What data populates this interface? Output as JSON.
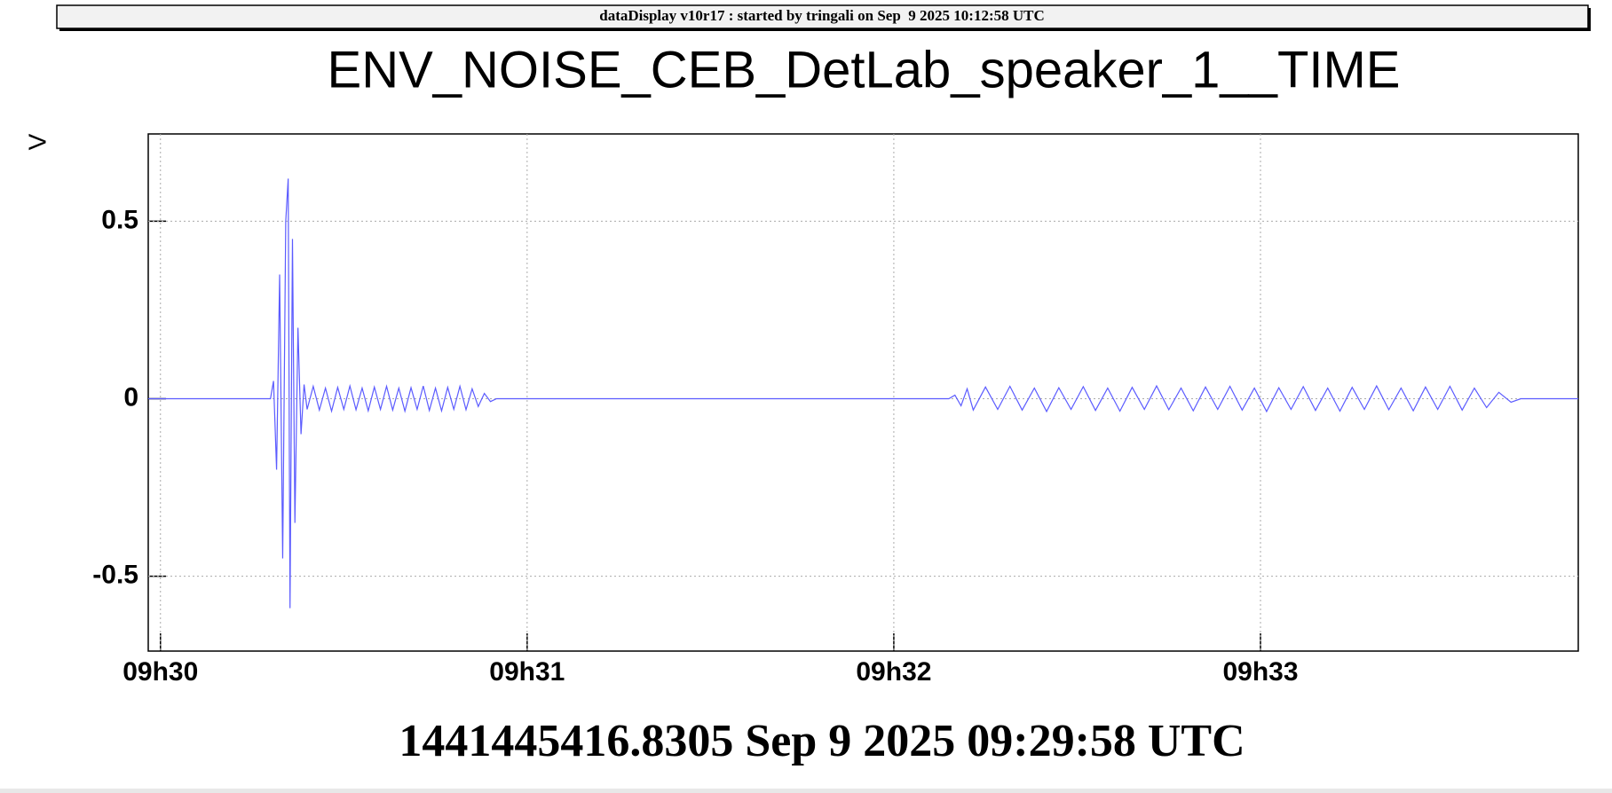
{
  "chart_data": {
    "type": "line",
    "subtitle": "dataDisplay v10r17 : started by tringali on Sep  9 2025 10:12:58 UTC",
    "title": "ENV_NOISE_CEB_DetLab_speaker_1__TIME",
    "xlabel": "1441445416.8305 Sep 9 2025 09:29:58 UTC",
    "ylabel": "V",
    "xlim": [
      0,
      234
    ],
    "xticks": [
      {
        "value": 2,
        "label": "09h30"
      },
      {
        "value": 62,
        "label": "09h31"
      },
      {
        "value": 122,
        "label": "09h32"
      },
      {
        "value": 182,
        "label": "09h33"
      }
    ],
    "ylim": [
      -0.711,
      0.746
    ],
    "yticks": [
      -0.5,
      0,
      0.5
    ],
    "grid": true,
    "series": [
      {
        "color": "#5b5bff",
        "x": [
          0,
          20,
          20.5,
          21,
          21.5,
          22,
          22.5,
          22.9,
          23.2,
          23.6,
          24,
          24.5,
          25,
          25.5,
          26,
          27,
          28,
          29,
          30,
          31,
          32,
          33,
          34,
          35,
          36,
          37,
          38,
          39,
          40,
          41,
          42,
          43,
          44,
          45,
          46,
          47,
          48,
          49,
          50,
          51,
          52,
          53,
          54,
          55,
          56,
          57,
          131,
          132,
          133,
          134,
          135,
          137,
          139,
          141,
          143,
          145,
          147,
          149,
          151,
          153,
          155,
          157,
          159,
          161,
          163,
          165,
          167,
          169,
          171,
          173,
          175,
          177,
          179,
          181,
          183,
          185,
          187,
          189,
          191,
          193,
          195,
          197,
          199,
          201,
          203,
          205,
          207,
          209,
          211,
          213,
          215,
          217,
          219,
          221,
          223,
          224.6,
          234
        ],
        "values": [
          0,
          0,
          0.05,
          -0.2,
          0.35,
          -0.45,
          0.5,
          0.62,
          -0.59,
          0.45,
          -0.35,
          0.2,
          -0.1,
          0.04,
          -0.03,
          0.035,
          -0.032,
          0.03,
          -0.035,
          0.032,
          -0.03,
          0.036,
          -0.031,
          0.03,
          -0.034,
          0.033,
          -0.03,
          0.035,
          -0.032,
          0.03,
          -0.035,
          0.031,
          -0.03,
          0.036,
          -0.033,
          0.03,
          -0.034,
          0.032,
          -0.03,
          0.035,
          -0.031,
          0.028,
          -0.022,
          0.015,
          -0.008,
          0,
          0,
          0.01,
          -0.02,
          0.028,
          -0.032,
          0.033,
          -0.03,
          0.035,
          -0.032,
          0.03,
          -0.036,
          0.031,
          -0.03,
          0.034,
          -0.033,
          0.03,
          -0.035,
          0.032,
          -0.03,
          0.036,
          -0.031,
          0.03,
          -0.034,
          0.033,
          -0.03,
          0.035,
          -0.032,
          0.03,
          -0.036,
          0.031,
          -0.03,
          0.034,
          -0.033,
          0.03,
          -0.035,
          0.032,
          -0.03,
          0.036,
          -0.031,
          0.03,
          -0.034,
          0.033,
          -0.03,
          0.035,
          -0.032,
          0.03,
          -0.025,
          0.018,
          -0.01,
          0,
          0
        ]
      }
    ]
  }
}
